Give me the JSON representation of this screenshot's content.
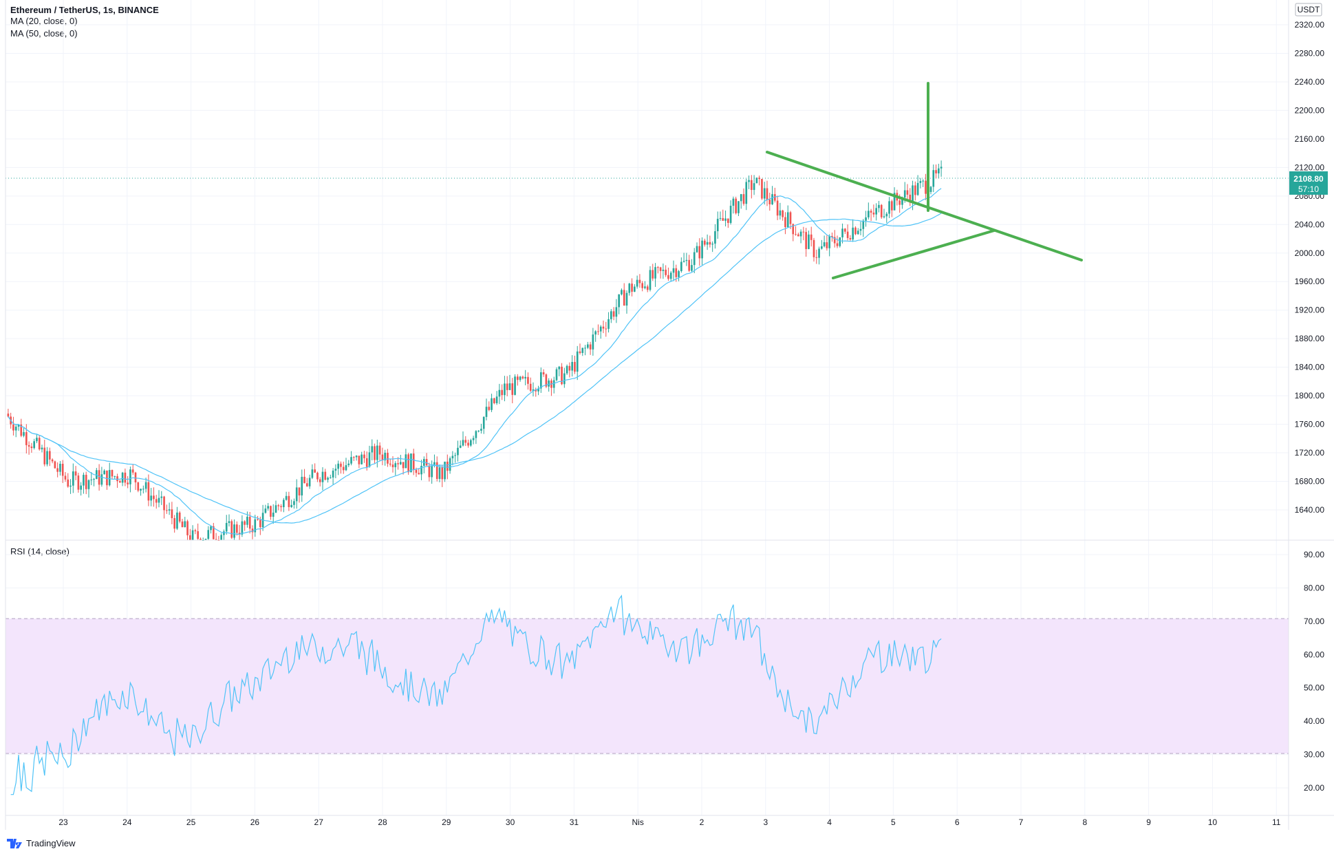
{
  "header": {
    "symbol": "Ethereum / TetherUS, 1s, BINANCE",
    "ma20": "MA (20, close, 0)",
    "ma50": "MA (50, close, 0)",
    "rsi": "RSI (14, close)",
    "currency": "USDT"
  },
  "price_badge": {
    "price": "2108.80",
    "countdown": "57:10"
  },
  "footer": {
    "brand": "TradingView"
  },
  "colors": {
    "up": "#26a69a",
    "down": "#ef5350",
    "ma": "#4fc3f7",
    "pattern": "#4caf50",
    "rsi_band": "#f3e5fc",
    "badge": "#26a69a"
  },
  "chart_data": [
    {
      "type": "candlestick",
      "yticks": [
        "2320.00",
        "2280.00",
        "2240.00",
        "2200.00",
        "2160.00",
        "2120.00",
        "2080.00",
        "2040.00",
        "2000.00",
        "1960.00",
        "1920.00",
        "1880.00",
        "1840.00",
        "1800.00",
        "1760.00",
        "1720.00",
        "1680.00",
        "1640.00"
      ],
      "ylim": [
        1615,
        2335
      ],
      "xticks": [
        "23",
        "24",
        "25",
        "26",
        "27",
        "28",
        "29",
        "30",
        "31",
        "Nis",
        "2",
        "3",
        "4",
        "5",
        "6",
        "7",
        "8",
        "9",
        "10",
        "11"
      ],
      "last_price": 2108.8,
      "ohlc_daily": [
        {
          "x": "23",
          "close": 1680
        },
        {
          "x": "24",
          "close": 1690
        },
        {
          "x": "25",
          "close": 1600
        },
        {
          "x": "26",
          "close": 1620
        },
        {
          "x": "27",
          "close": 1690
        },
        {
          "x": "28",
          "close": 1720
        },
        {
          "x": "29",
          "close": 1690
        },
        {
          "x": "30",
          "close": 1810
        },
        {
          "x": "31",
          "close": 1830
        },
        {
          "x": "Nis",
          "close": 1950
        },
        {
          "x": "2",
          "close": 1990
        },
        {
          "x": "3",
          "close": 2100
        },
        {
          "x": "4",
          "close": 2000
        },
        {
          "x": "5",
          "close": 2060
        },
        {
          "x": "6",
          "close": 2108.8
        }
      ],
      "pattern": "symmetrical triangle with breakout target"
    },
    {
      "type": "line",
      "series": [
        {
          "name": "RSI (14, close)"
        }
      ],
      "yticks": [
        "90.00",
        "80.00",
        "70.00",
        "60.00",
        "50.00",
        "40.00",
        "30.00",
        "20.00"
      ],
      "ylim": [
        14,
        91
      ],
      "band": [
        30,
        70
      ],
      "last_value": 66
    }
  ]
}
